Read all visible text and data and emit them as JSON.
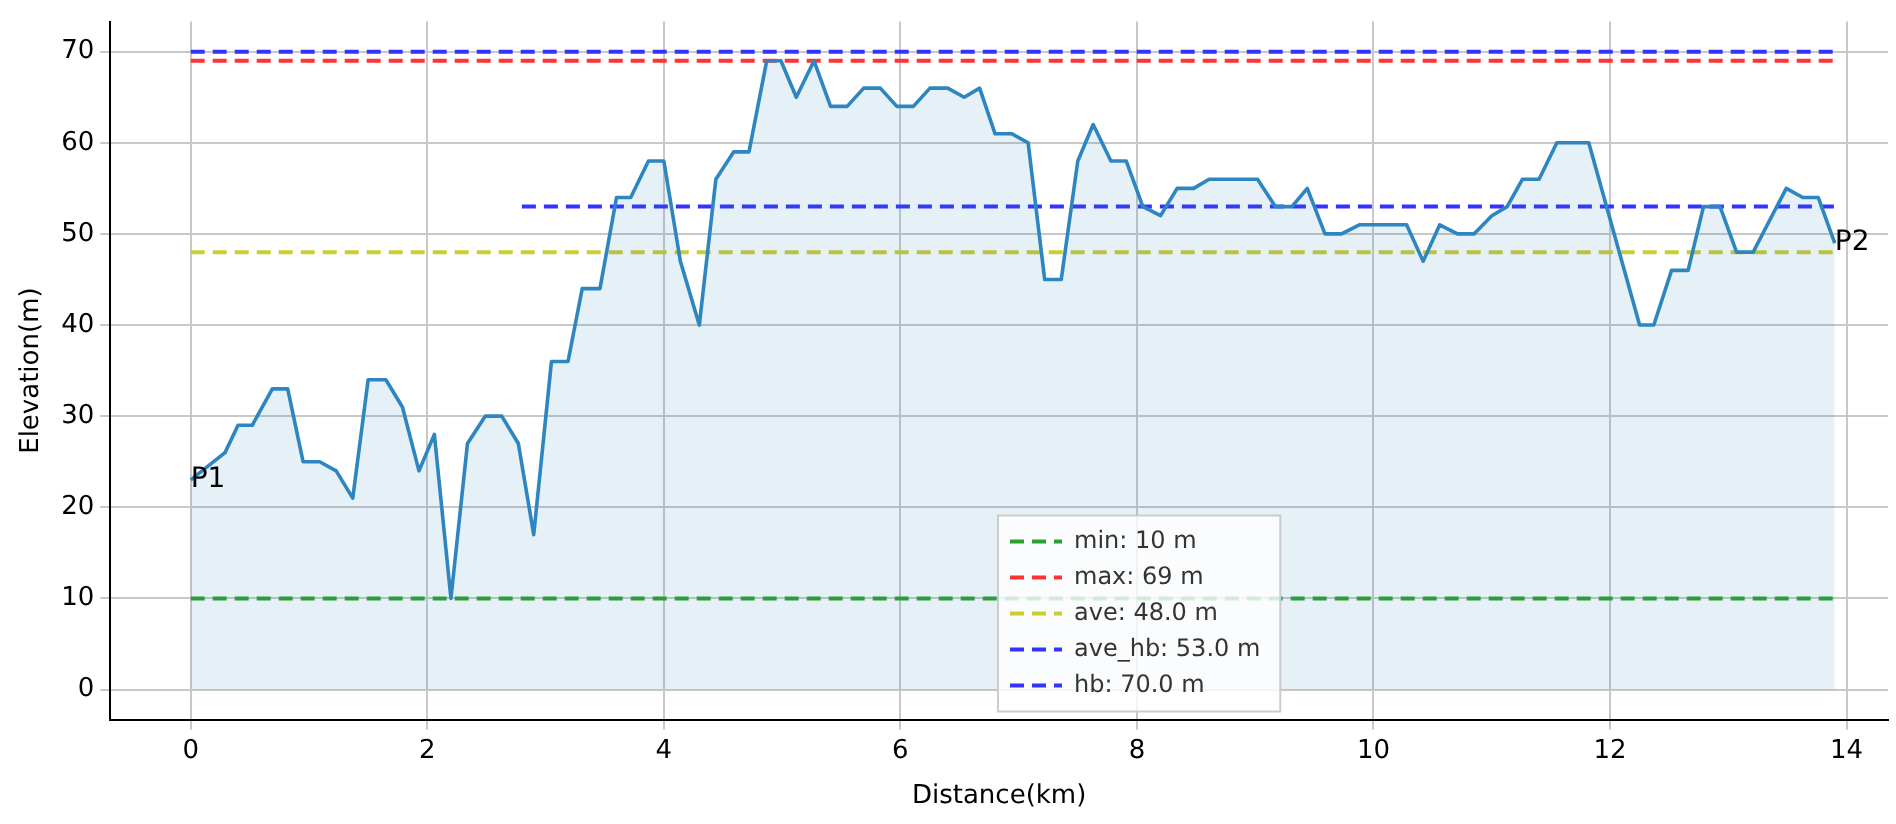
{
  "chart_data": {
    "type": "area",
    "xlabel": "Distance(km)",
    "ylabel": "Elevation(m)",
    "xlim": [
      -0.68,
      14.35
    ],
    "xticks": [
      0,
      2,
      4,
      6,
      8,
      10,
      12,
      14
    ],
    "ylim": [
      -3.3,
      73.3
    ],
    "yticks": [
      0,
      10,
      20,
      30,
      40,
      50,
      60,
      70
    ],
    "grid": true,
    "legend": "bottom",
    "annotations": [
      {
        "text": "P1",
        "x": 0,
        "y": 23
      },
      {
        "text": "P2",
        "x": 13.9,
        "y": 49
      }
    ],
    "series": [
      {
        "color": "#2e86c1",
        "x": [
          0,
          0.29,
          0.4,
          0.52,
          0.69,
          0.82,
          0.95,
          1.09,
          1.23,
          1.37,
          1.5,
          1.65,
          1.79,
          1.93,
          2.06,
          2.2,
          2.34,
          2.49,
          2.63,
          2.77,
          2.9,
          3.05,
          3.19,
          3.31,
          3.46,
          3.6,
          3.72,
          3.87,
          4.0,
          4.14,
          4.3,
          4.44,
          4.59,
          4.72,
          4.87,
          4.99,
          5.12,
          5.27,
          5.41,
          5.55,
          5.69,
          5.83,
          5.97,
          6.11,
          6.25,
          6.4,
          6.54,
          6.67,
          6.8,
          6.94,
          7.08,
          7.22,
          7.36,
          7.5,
          7.63,
          7.78,
          7.91,
          8.05,
          8.2,
          8.34,
          8.48,
          8.61,
          9.02,
          9.17,
          9.31,
          9.44,
          9.59,
          9.73,
          9.88,
          10.28,
          10.42,
          10.56,
          10.71,
          10.85,
          11.0,
          11.13,
          11.26,
          11.4,
          11.55,
          11.82,
          12.25,
          12.37,
          12.52,
          12.66,
          12.79,
          12.93,
          13.07,
          13.21,
          13.49,
          13.63,
          13.76,
          13.9
        ],
        "values": [
          23,
          26,
          29,
          29,
          33,
          33,
          25,
          25,
          24,
          21,
          34,
          34,
          31,
          24,
          28,
          10,
          27,
          30,
          30,
          27,
          17,
          36,
          36,
          44,
          44,
          54,
          54,
          58,
          58,
          47,
          40,
          56,
          59,
          59,
          69,
          69,
          65,
          69,
          64,
          64,
          66,
          66,
          64,
          64,
          66,
          66,
          65,
          66,
          61,
          61,
          60,
          45,
          45,
          58,
          62,
          58,
          58,
          53,
          52,
          55,
          55,
          56,
          56,
          53,
          53,
          55,
          50,
          50,
          51,
          51,
          47,
          51,
          50,
          50,
          52,
          53,
          56,
          56,
          60,
          60,
          40,
          40,
          46,
          46,
          53,
          53,
          48,
          48,
          55,
          54,
          54,
          49
        ]
      },
      {
        "type": "line",
        "name": "min: 10 m",
        "color": "#2ca02c",
        "line_style": "dashed",
        "x": [
          0,
          13.9
        ],
        "values": [
          10,
          10
        ]
      },
      {
        "type": "line",
        "name": "max: 69 m",
        "color": "#ff3333",
        "line_style": "dashed",
        "x": [
          0,
          13.9
        ],
        "values": [
          69,
          69
        ]
      },
      {
        "type": "line",
        "name": "ave: 48.0 m",
        "color": "#cccc33",
        "line_style": "dashed",
        "x": [
          0,
          13.9
        ],
        "values": [
          48,
          48
        ]
      },
      {
        "type": "line",
        "name": "ave_hb: 53.0 m",
        "color": "#3333ff",
        "line_style": "dashed",
        "x": [
          2.8,
          13.9
        ],
        "values": [
          53,
          53
        ]
      },
      {
        "type": "line",
        "name": "hb: 70.0 m",
        "color": "#3333ff",
        "line_style": "dashed",
        "x": [
          0,
          13.9
        ],
        "values": [
          70,
          70
        ]
      }
    ]
  }
}
